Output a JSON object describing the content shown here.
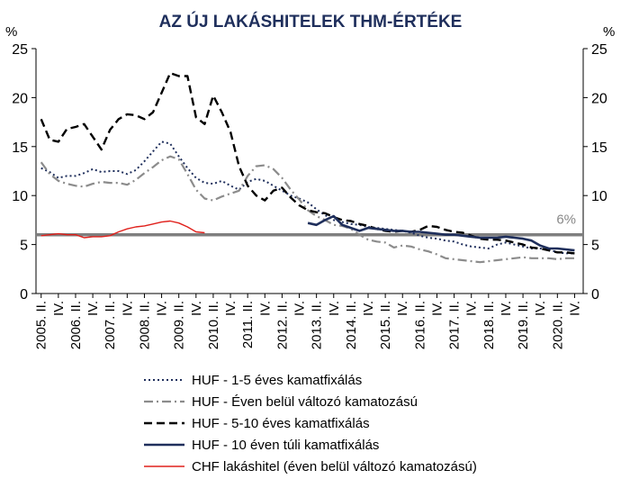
{
  "chart_data": {
    "type": "line",
    "title": "AZ ÚJ LAKÁSHITELEK THM-ÉRTÉKE",
    "y_unit_left": "%",
    "y_unit_right": "%",
    "ylim": [
      0,
      25
    ],
    "yticks": [
      0,
      5,
      10,
      15,
      20,
      25
    ],
    "x_tick_labels": [
      "2005. II.",
      "IV.",
      "2006. II.",
      "IV.",
      "2007. II.",
      "IV.",
      "2008. II.",
      "IV.",
      "2009. II.",
      "IV.",
      "2010. II.",
      "IV.",
      "2011. II.",
      "IV.",
      "2012. II.",
      "IV.",
      "2013. II.",
      "IV.",
      "2014. II.",
      "IV.",
      "2015. II.",
      "IV.",
      "2016. II.",
      "IV.",
      "2017. II.",
      "IV.",
      "2018. II.",
      "IV.",
      "2019. II.",
      "IV.",
      "2020. II.",
      "IV."
    ],
    "grid": false,
    "legend_position": "bottom",
    "reference_line": {
      "value": 6,
      "label": "6%",
      "color": "#7f7f7f"
    },
    "series": [
      {
        "name": "HUF - 1-5 éves kamatfixálás",
        "style": "dotted",
        "color": "#1f2f5c",
        "x": [
          2005.25,
          2005.5,
          2005.75,
          2006.0,
          2006.25,
          2006.5,
          2006.75,
          2007.0,
          2007.25,
          2007.5,
          2007.75,
          2008.0,
          2008.25,
          2008.5,
          2008.75,
          2009.0,
          2009.25,
          2009.5,
          2009.75,
          2010.0,
          2010.25,
          2010.5,
          2010.75,
          2011.0,
          2011.25,
          2011.5,
          2011.75,
          2012.0,
          2012.25,
          2012.5,
          2012.75,
          2013.0,
          2013.25,
          2013.5,
          2013.75,
          2014.0,
          2014.25,
          2014.5,
          2014.75,
          2015.0,
          2015.25,
          2015.5,
          2015.75,
          2016.0,
          2016.25,
          2016.5,
          2016.75,
          2017.0,
          2017.25,
          2017.5,
          2017.75,
          2018.0,
          2018.25,
          2018.5,
          2018.75,
          2019.0,
          2019.25,
          2019.5,
          2019.75,
          2020.0,
          2020.25,
          2020.5,
          2020.75
        ],
        "values": [
          12.8,
          12.4,
          11.8,
          12.0,
          12.0,
          12.3,
          12.7,
          12.4,
          12.5,
          12.5,
          12.2,
          12.6,
          13.5,
          14.5,
          15.5,
          15.3,
          14.0,
          12.8,
          11.8,
          11.3,
          11.2,
          11.5,
          11.0,
          10.6,
          11.4,
          11.7,
          11.5,
          11.0,
          10.5,
          10.0,
          9.7,
          9.3,
          8.6,
          8.0,
          7.5,
          7.3,
          7.1,
          7.0,
          6.8,
          6.7,
          6.6,
          6.5,
          6.4,
          6.2,
          5.9,
          5.7,
          5.6,
          5.4,
          5.3,
          5.0,
          4.8,
          4.7,
          4.6,
          5.0,
          5.2,
          5.0,
          4.8,
          4.6,
          4.6,
          4.5,
          4.2,
          4.1,
          4.1
        ]
      },
      {
        "name": "HUF - Éven belül változó kamatozású",
        "style": "dashdot",
        "color": "#8c8c8c",
        "x": [
          2005.25,
          2005.5,
          2005.75,
          2006.0,
          2006.25,
          2006.5,
          2006.75,
          2007.0,
          2007.25,
          2007.5,
          2007.75,
          2008.0,
          2008.25,
          2008.5,
          2008.75,
          2009.0,
          2009.25,
          2009.5,
          2009.75,
          2010.0,
          2010.25,
          2010.5,
          2010.75,
          2011.0,
          2011.25,
          2011.5,
          2011.75,
          2012.0,
          2012.25,
          2012.5,
          2012.75,
          2013.0,
          2013.25,
          2013.5,
          2013.75,
          2014.0,
          2014.25,
          2014.5,
          2014.75,
          2015.0,
          2015.25,
          2015.5,
          2015.75,
          2016.0,
          2016.25,
          2016.5,
          2016.75,
          2017.0,
          2017.25,
          2017.5,
          2017.75,
          2018.0,
          2018.25,
          2018.5,
          2018.75,
          2019.0,
          2019.25,
          2019.5,
          2019.75,
          2020.0,
          2020.25,
          2020.5,
          2020.75
        ],
        "values": [
          13.4,
          12.2,
          11.5,
          11.2,
          11.0,
          10.9,
          11.2,
          11.4,
          11.3,
          11.3,
          11.1,
          11.6,
          12.3,
          12.9,
          13.6,
          14.0,
          13.7,
          12.2,
          10.6,
          9.7,
          9.5,
          9.9,
          10.2,
          10.5,
          12.0,
          13.0,
          13.1,
          12.7,
          11.8,
          10.6,
          9.6,
          8.5,
          7.9,
          7.5,
          7.0,
          6.9,
          6.6,
          6.0,
          5.5,
          5.3,
          5.2,
          4.7,
          4.9,
          4.8,
          4.5,
          4.3,
          4.0,
          3.6,
          3.5,
          3.4,
          3.3,
          3.2,
          3.3,
          3.4,
          3.5,
          3.6,
          3.7,
          3.6,
          3.6,
          3.6,
          3.5,
          3.6,
          3.6
        ]
      },
      {
        "name": "HUF - 5-10 éves kamatfixálás",
        "style": "dashed",
        "color": "#000000",
        "x": [
          2005.25,
          2005.5,
          2005.75,
          2006.0,
          2006.25,
          2006.5,
          2006.75,
          2007.0,
          2007.25,
          2007.5,
          2007.75,
          2008.0,
          2008.25,
          2008.5,
          2008.75,
          2009.0,
          2009.25,
          2009.5,
          2009.75,
          2010.0,
          2010.25,
          2010.5,
          2010.75,
          2011.0,
          2011.25,
          2011.5,
          2011.75,
          2012.0,
          2012.25,
          2012.5,
          2012.75,
          2013.0,
          2013.25,
          2013.5,
          2013.75,
          2014.0,
          2014.25,
          2014.5,
          2014.75,
          2015.0,
          2015.25,
          2015.5,
          2015.75,
          2016.0,
          2016.25,
          2016.5,
          2016.75,
          2017.0,
          2017.25,
          2017.5,
          2017.75,
          2018.0,
          2018.25,
          2018.5,
          2018.75,
          2019.0,
          2019.25,
          2019.5,
          2019.75,
          2020.0,
          2020.25,
          2020.5,
          2020.75
        ],
        "values": [
          17.8,
          15.7,
          15.5,
          16.8,
          17.0,
          17.3,
          16.0,
          14.7,
          16.7,
          17.8,
          18.3,
          18.2,
          17.8,
          18.5,
          20.5,
          22.5,
          22.2,
          22.2,
          18.0,
          17.3,
          20.2,
          18.5,
          16.5,
          13.0,
          11.0,
          10.0,
          9.5,
          10.5,
          10.8,
          9.8,
          9.0,
          8.5,
          8.3,
          8.2,
          7.8,
          7.5,
          7.4,
          7.1,
          6.9,
          6.6,
          6.4,
          6.3,
          6.4,
          6.3,
          6.5,
          6.9,
          6.8,
          6.5,
          6.3,
          6.2,
          5.9,
          5.6,
          5.5,
          5.5,
          5.4,
          5.2,
          5.0,
          4.7,
          4.6,
          4.4,
          4.2,
          4.2,
          4.1
        ]
      },
      {
        "name": "HUF - 10 éven túli kamatfixálás",
        "style": "solid",
        "color": "#1f2f5c",
        "x": [
          2013.0,
          2013.25,
          2013.5,
          2013.75,
          2014.0,
          2014.25,
          2014.5,
          2014.75,
          2015.0,
          2015.25,
          2015.5,
          2015.75,
          2016.0,
          2016.25,
          2016.5,
          2016.75,
          2017.0,
          2017.25,
          2017.5,
          2017.75,
          2018.0,
          2018.25,
          2018.5,
          2018.75,
          2019.0,
          2019.25,
          2019.5,
          2019.75,
          2020.0,
          2020.25,
          2020.5,
          2020.75
        ],
        "values": [
          7.2,
          7.0,
          7.5,
          7.9,
          7.0,
          6.7,
          6.4,
          6.7,
          6.6,
          6.5,
          6.4,
          6.4,
          6.3,
          6.3,
          6.2,
          6.1,
          6.0,
          6.0,
          5.9,
          5.8,
          5.7,
          5.7,
          5.7,
          5.8,
          5.7,
          5.6,
          5.4,
          4.9,
          4.6,
          4.6,
          4.5,
          4.4
        ]
      },
      {
        "name": "CHF lakáshitel (éven belül változó kamatozású)",
        "style": "solid-thin",
        "color": "#e0201b",
        "x": [
          2005.25,
          2005.5,
          2005.75,
          2006.0,
          2006.25,
          2006.5,
          2006.75,
          2007.0,
          2007.25,
          2007.5,
          2007.75,
          2008.0,
          2008.25,
          2008.5,
          2008.75,
          2009.0,
          2009.25,
          2009.5,
          2009.75,
          2010.0
        ],
        "values": [
          5.9,
          6.0,
          6.1,
          6.0,
          6.0,
          5.7,
          5.8,
          5.8,
          5.9,
          6.3,
          6.6,
          6.8,
          6.9,
          7.1,
          7.3,
          7.4,
          7.2,
          6.8,
          6.3,
          6.2
        ]
      }
    ]
  }
}
